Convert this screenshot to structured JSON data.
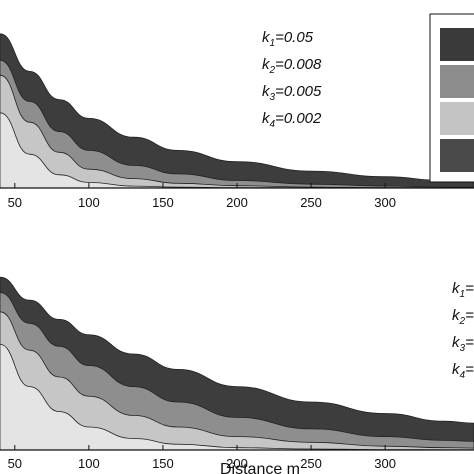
{
  "chart_data": [
    {
      "type": "area",
      "xlabel": "",
      "xlim": [
        40,
        360
      ],
      "xticks": [
        "50",
        "100",
        "150",
        "200",
        "250",
        "300"
      ],
      "tick_values": [
        50,
        100,
        150,
        200,
        250,
        300
      ],
      "legend_placement": "top-right",
      "annotations": [
        {
          "base": "k",
          "sub": "1",
          "rest": "=0.05"
        },
        {
          "base": "k",
          "sub": "2",
          "rest": "=0.008"
        },
        {
          "base": "k",
          "sub": "3",
          "rest": "=0.005"
        },
        {
          "base": "k",
          "sub": "4",
          "rest": "=0.002"
        }
      ],
      "legend_swatches": [
        "#3a3a3a",
        "#8c8c8c",
        "#c4c4c4",
        "#4a4a4a"
      ],
      "series": [
        {
          "color": "#3d3d3d",
          "x": [
            40,
            60,
            80,
            100,
            130,
            160,
            200,
            250,
            300,
            340,
            360
          ],
          "values": [
            0.82,
            0.62,
            0.47,
            0.37,
            0.27,
            0.2,
            0.14,
            0.09,
            0.06,
            0.04,
            0.035
          ]
        },
        {
          "color": "#8e8e8e",
          "x": [
            40,
            60,
            80,
            100,
            130,
            160,
            200,
            250,
            300,
            340,
            360
          ],
          "values": [
            0.68,
            0.46,
            0.3,
            0.2,
            0.12,
            0.075,
            0.04,
            0.02,
            0.01,
            0.005,
            0.004
          ]
        },
        {
          "color": "#c6c6c6",
          "x": [
            40,
            60,
            80,
            100,
            130,
            160,
            200,
            250,
            300,
            340,
            360
          ],
          "values": [
            0.6,
            0.35,
            0.19,
            0.1,
            0.05,
            0.025,
            0.012,
            0.005,
            0.002,
            0.001,
            0.001
          ]
        },
        {
          "color": "#e4e4e4",
          "x": [
            40,
            60,
            80,
            100,
            130,
            160,
            200,
            250,
            300,
            340,
            360
          ],
          "values": [
            0.4,
            0.18,
            0.07,
            0.03,
            0.01,
            0.005,
            0.002,
            0.001,
            0.0,
            0.0,
            0.0
          ]
        }
      ],
      "ylim": [
        0,
        1
      ]
    },
    {
      "type": "area",
      "xlabel": "Distance m",
      "xlim": [
        40,
        360
      ],
      "xticks": [
        "50",
        "100",
        "150",
        "200",
        "250",
        "300"
      ],
      "tick_values": [
        50,
        100,
        150,
        200,
        250,
        300
      ],
      "legend_placement": "right",
      "annotations": [
        {
          "base": "k",
          "sub": "1",
          "rest": "="
        },
        {
          "base": "k",
          "sub": "2",
          "rest": "="
        },
        {
          "base": "k",
          "sub": "3",
          "rest": "="
        },
        {
          "base": "k",
          "sub": "4",
          "rest": "="
        }
      ],
      "series": [
        {
          "color": "#3d3d3d",
          "x": [
            40,
            60,
            80,
            100,
            130,
            160,
            200,
            250,
            300,
            340,
            360
          ],
          "values": [
            0.9,
            0.78,
            0.68,
            0.6,
            0.5,
            0.42,
            0.33,
            0.25,
            0.19,
            0.15,
            0.14
          ]
        },
        {
          "color": "#8e8e8e",
          "x": [
            40,
            60,
            80,
            100,
            130,
            160,
            200,
            250,
            300,
            340,
            360
          ],
          "values": [
            0.82,
            0.66,
            0.54,
            0.44,
            0.33,
            0.25,
            0.17,
            0.11,
            0.07,
            0.05,
            0.045
          ]
        },
        {
          "color": "#c6c6c6",
          "x": [
            40,
            60,
            80,
            100,
            130,
            160,
            200,
            250,
            300,
            340,
            360
          ],
          "values": [
            0.72,
            0.52,
            0.38,
            0.28,
            0.18,
            0.12,
            0.07,
            0.04,
            0.02,
            0.012,
            0.01
          ]
        },
        {
          "color": "#e4e4e4",
          "x": [
            40,
            60,
            80,
            100,
            130,
            160,
            200,
            250,
            300,
            340,
            360
          ],
          "values": [
            0.55,
            0.33,
            0.2,
            0.12,
            0.06,
            0.03,
            0.012,
            0.005,
            0.002,
            0.001,
            0.001
          ]
        }
      ],
      "ylim": [
        0,
        1
      ]
    }
  ]
}
